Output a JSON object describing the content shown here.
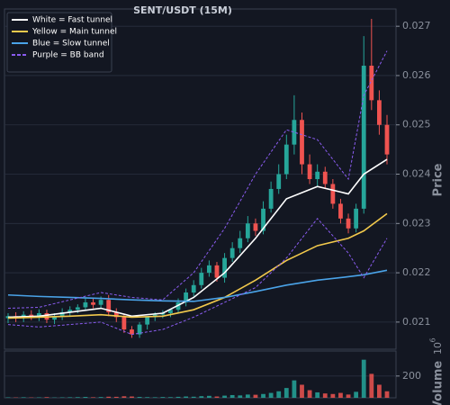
{
  "chart_data": [
    {
      "type": "candlestick",
      "title": "SENT/USDT (15M)",
      "ylabel": "Price",
      "legend": "upper left",
      "grid": true,
      "ylim": [
        0.02045,
        0.02735
      ],
      "yticks": [
        0.021,
        0.022,
        0.023,
        0.024,
        0.025,
        0.026,
        0.027
      ],
      "up_color": "#26a69a",
      "down_color": "#ef5350",
      "open": [
        0.02108,
        0.02112,
        0.02108,
        0.02115,
        0.0211,
        0.02118,
        0.02105,
        0.02112,
        0.0212,
        0.02125,
        0.0213,
        0.0214,
        0.02135,
        0.02145,
        0.0212,
        0.0211,
        0.02085,
        0.02075,
        0.02095,
        0.0211,
        0.02115,
        0.02118,
        0.02125,
        0.0214,
        0.0216,
        0.02175,
        0.022,
        0.02215,
        0.0219,
        0.0223,
        0.0225,
        0.0227,
        0.023,
        0.02285,
        0.0233,
        0.0237,
        0.024,
        0.0246,
        0.0251,
        0.0242,
        0.0239,
        0.02405,
        0.0238,
        0.0234,
        0.0231,
        0.0229,
        0.0233,
        0.0262,
        0.0255,
        0.025
      ],
      "high": [
        0.02118,
        0.0212,
        0.02122,
        0.02124,
        0.02126,
        0.02125,
        0.02118,
        0.02128,
        0.02132,
        0.02136,
        0.02148,
        0.0215,
        0.02152,
        0.02155,
        0.02128,
        0.02116,
        0.02092,
        0.021,
        0.02104,
        0.0212,
        0.02124,
        0.02126,
        0.02148,
        0.02168,
        0.02185,
        0.0221,
        0.02225,
        0.02222,
        0.0224,
        0.02262,
        0.02285,
        0.02315,
        0.0231,
        0.02345,
        0.02385,
        0.0242,
        0.0248,
        0.0256,
        0.02525,
        0.0244,
        0.0242,
        0.02415,
        0.0239,
        0.0235,
        0.0232,
        0.0234,
        0.0268,
        0.02715,
        0.0257,
        0.0252
      ],
      "low": [
        0.02098,
        0.021,
        0.021,
        0.02104,
        0.02102,
        0.02098,
        0.02096,
        0.02104,
        0.02112,
        0.02118,
        0.02124,
        0.02128,
        0.02128,
        0.02112,
        0.021,
        0.02078,
        0.02068,
        0.02068,
        0.02085,
        0.02102,
        0.02108,
        0.0211,
        0.02118,
        0.02132,
        0.02152,
        0.02168,
        0.02192,
        0.02182,
        0.0218,
        0.02222,
        0.0224,
        0.02262,
        0.02275,
        0.02278,
        0.02322,
        0.0236,
        0.0239,
        0.0244,
        0.024,
        0.0238,
        0.02375,
        0.0237,
        0.0233,
        0.023,
        0.0228,
        0.02282,
        0.0232,
        0.0253,
        0.0248,
        0.0242
      ],
      "close": [
        0.02112,
        0.02108,
        0.02115,
        0.0211,
        0.02118,
        0.02105,
        0.02112,
        0.0212,
        0.02125,
        0.0213,
        0.0214,
        0.02135,
        0.02145,
        0.0212,
        0.0211,
        0.02085,
        0.02075,
        0.02095,
        0.0211,
        0.02115,
        0.02118,
        0.02125,
        0.0214,
        0.0216,
        0.02175,
        0.022,
        0.02215,
        0.0219,
        0.0223,
        0.0225,
        0.0227,
        0.023,
        0.02285,
        0.0233,
        0.0237,
        0.024,
        0.0246,
        0.0251,
        0.0242,
        0.0239,
        0.02405,
        0.0238,
        0.0234,
        0.0231,
        0.0229,
        0.0233,
        0.0262,
        0.0255,
        0.025,
        0.0244
      ],
      "lines": [
        {
          "name": "White = Fast tunnel",
          "color": "#ffffff",
          "dashed": false,
          "x": [
            0,
            4,
            8,
            12,
            16,
            20,
            24,
            28,
            32,
            36,
            40,
            44,
            46,
            49
          ],
          "values": [
            0.0211,
            0.02112,
            0.0212,
            0.02128,
            0.02112,
            0.02118,
            0.0215,
            0.022,
            0.0227,
            0.0235,
            0.02375,
            0.0236,
            0.024,
            0.0243
          ]
        },
        {
          "name": "Yellow = Main tunnel",
          "color": "#f2c94c",
          "dashed": false,
          "x": [
            0,
            4,
            8,
            12,
            16,
            20,
            24,
            28,
            32,
            36,
            40,
            44,
            46,
            49
          ],
          "values": [
            0.02108,
            0.0211,
            0.02112,
            0.02115,
            0.0211,
            0.02112,
            0.02125,
            0.0215,
            0.02185,
            0.02225,
            0.02255,
            0.0227,
            0.02285,
            0.0232
          ]
        },
        {
          "name": "Blue = Slow tunnel",
          "color": "#4aa3e8",
          "dashed": false,
          "x": [
            0,
            4,
            8,
            12,
            16,
            20,
            24,
            28,
            32,
            36,
            40,
            44,
            46,
            49
          ],
          "values": [
            0.02155,
            0.02152,
            0.0215,
            0.02148,
            0.02145,
            0.02143,
            0.02142,
            0.0215,
            0.02162,
            0.02175,
            0.02185,
            0.02192,
            0.02196,
            0.02205
          ]
        },
        {
          "name": "Purple = BB band",
          "color": "#8a5cf0",
          "dashed": true,
          "x": [
            0,
            4,
            8,
            12,
            16,
            20,
            24,
            28,
            32,
            36,
            40,
            44,
            46,
            49
          ],
          "values": [
            0.02128,
            0.0213,
            0.02145,
            0.0216,
            0.0215,
            0.02145,
            0.022,
            0.0229,
            0.024,
            0.0249,
            0.0247,
            0.0239,
            0.0256,
            0.0265
          ]
        },
        {
          "color": "#8a5cf0",
          "dashed": true,
          "x": [
            0,
            4,
            8,
            12,
            16,
            20,
            24,
            28,
            32,
            36,
            40,
            44,
            46,
            49
          ],
          "values": [
            0.02095,
            0.0209,
            0.02095,
            0.021,
            0.02075,
            0.02085,
            0.0211,
            0.0214,
            0.0217,
            0.0223,
            0.0231,
            0.0224,
            0.0219,
            0.0227
          ]
        }
      ]
    },
    {
      "type": "bar",
      "ylabel": "Volume",
      "offset_label": {
        "base": "10",
        "exponent": "6"
      },
      "ylim": [
        0,
        430
      ],
      "yticks": [
        200
      ],
      "values": [
        4,
        3,
        5,
        3,
        4,
        6,
        3,
        4,
        5,
        6,
        8,
        5,
        7,
        10,
        9,
        14,
        12,
        8,
        6,
        5,
        7,
        6,
        9,
        12,
        10,
        15,
        18,
        12,
        20,
        25,
        22,
        30,
        28,
        35,
        45,
        60,
        90,
        160,
        120,
        70,
        50,
        40,
        35,
        45,
        30,
        55,
        350,
        220,
        120,
        60
      ]
    }
  ]
}
